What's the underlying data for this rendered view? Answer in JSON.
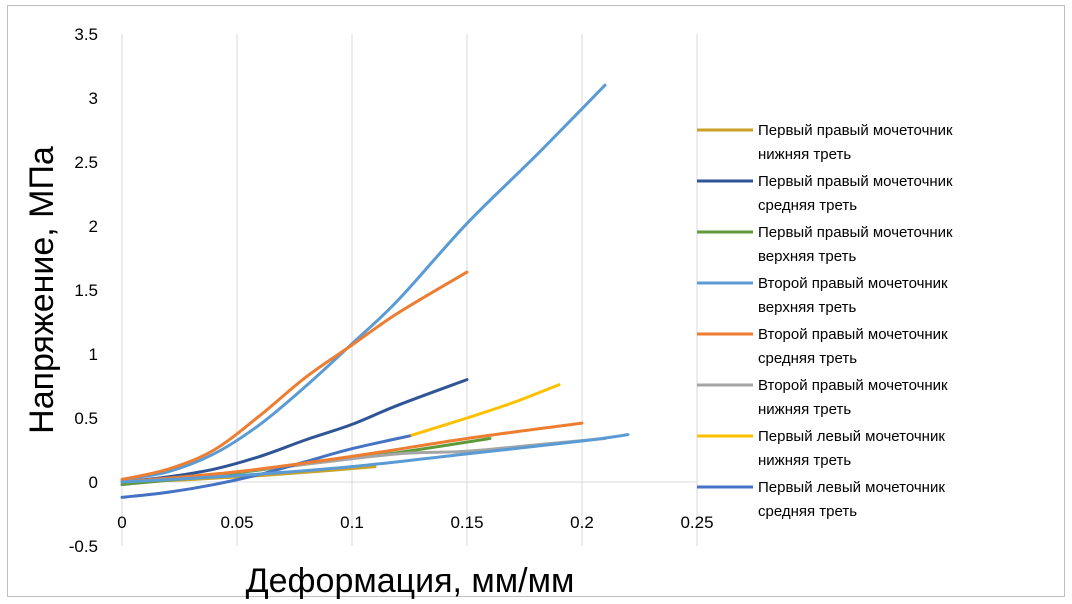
{
  "chart_data": {
    "type": "line",
    "xlabel": "Деформация, мм/мм",
    "ylabel": "Напряжение, МПа",
    "xlim": [
      0,
      0.25
    ],
    "ylim": [
      -0.5,
      3.5
    ],
    "xticks": [
      "0",
      "0.05",
      "0.1",
      "0.15",
      "0.2",
      "0.25"
    ],
    "yticks": [
      "-0.5",
      "0",
      "0.5",
      "1",
      "1.5",
      "2",
      "2.5",
      "3",
      "3.5"
    ],
    "grid": "vertical",
    "legend_position": "right",
    "series": [
      {
        "name": "Первый правый мочеточник нижняя треть",
        "color": "#c9a227",
        "x": [
          0,
          0.03,
          0.06,
          0.09,
          0.11
        ],
        "y": [
          0.0,
          0.02,
          0.05,
          0.09,
          0.12
        ]
      },
      {
        "name": "Первый правый мочеточник средняя треть",
        "color": "#2f5597",
        "x": [
          0,
          0.02,
          0.04,
          0.06,
          0.08,
          0.1,
          0.12,
          0.15
        ],
        "y": [
          0.0,
          0.04,
          0.1,
          0.2,
          0.33,
          0.45,
          0.6,
          0.8
        ]
      },
      {
        "name": "Первый правый мочеточник верхняя треть",
        "color": "#5e9a3a",
        "x": [
          0,
          0.04,
          0.08,
          0.12,
          0.16
        ],
        "y": [
          -0.02,
          0.05,
          0.14,
          0.23,
          0.34
        ]
      },
      {
        "name": "Второй правый мочеточник верхняя треть",
        "color": "#5b9bd5",
        "x": [
          0,
          0.02,
          0.04,
          0.06,
          0.08,
          0.1,
          0.12,
          0.15,
          0.18,
          0.21
        ],
        "y": [
          0.02,
          0.08,
          0.22,
          0.45,
          0.75,
          1.08,
          1.42,
          2.02,
          2.55,
          3.1
        ]
      },
      {
        "name": "Второй правый мочеточник средняя треть",
        "color": "#ed7d31",
        "x": [
          0,
          0.02,
          0.04,
          0.06,
          0.08,
          0.1,
          0.12,
          0.15
        ],
        "y": [
          0.02,
          0.1,
          0.25,
          0.52,
          0.82,
          1.07,
          1.32,
          1.64
        ]
      },
      {
        "name": "Второй правый мочеточник нижняя треть",
        "color": "#a5a5a5",
        "x": [
          0,
          0.04,
          0.08,
          0.12,
          0.15,
          0.18,
          0.21
        ],
        "y": [
          0.0,
          0.06,
          0.14,
          0.22,
          0.24,
          0.29,
          0.34
        ]
      },
      {
        "name": "Первый левый мочеточник нижняя треть",
        "color": "#ffc000",
        "x": [
          0.125,
          0.15,
          0.17,
          0.19
        ],
        "y": [
          0.36,
          0.5,
          0.62,
          0.76
        ]
      },
      {
        "name": "Первый левый мочеточник средняя треть",
        "color": "#4472c4",
        "x": [
          0,
          0.02,
          0.04,
          0.06,
          0.08,
          0.1,
          0.125
        ],
        "y": [
          -0.12,
          -0.08,
          -0.02,
          0.06,
          0.16,
          0.26,
          0.36
        ]
      },
      {
        "name": "",
        "color": "#ed7d31",
        "x": [
          0.0,
          0.05,
          0.1,
          0.15,
          0.2
        ],
        "y": [
          0.0,
          0.08,
          0.2,
          0.34,
          0.46
        ]
      },
      {
        "name": "",
        "color": "#5b9bd5",
        "x": [
          0.0,
          0.05,
          0.1,
          0.15,
          0.2,
          0.22
        ],
        "y": [
          0.0,
          0.05,
          0.12,
          0.22,
          0.32,
          0.37
        ]
      }
    ]
  }
}
